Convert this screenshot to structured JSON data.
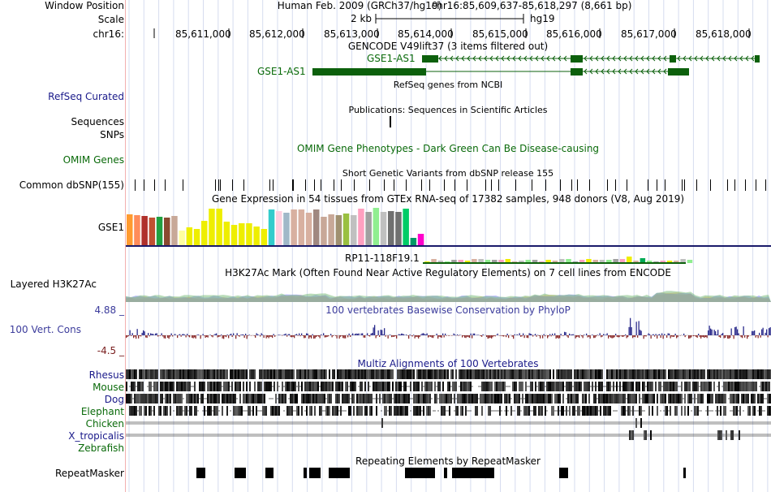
{
  "side_labels": {
    "window_position": "Window Position",
    "scale": "Scale",
    "chrom": "chr16:",
    "refseq_curated": "RefSeq Curated",
    "sequences": "Sequences",
    "snps": "SNPs",
    "omim_genes": "OMIM Genes",
    "common_dbsnp": "Common dbSNP(155)",
    "gse1": "GSE1",
    "layered_h3k27ac": "Layered H3K27Ac",
    "cons_max": "4.88 _",
    "vert_cons": "100 Vert. Cons",
    "cons_min": "-4.5 _",
    "rhesus": "Rhesus",
    "mouse": "Mouse",
    "dog": "Dog",
    "elephant": "Elephant",
    "chicken": "Chicken",
    "x_tropicalis": "X_tropicalis",
    "zebrafish": "Zebrafish",
    "repeatmasker": "RepeatMasker"
  },
  "header": {
    "assembly": "Human Feb. 2009 (GRCh37/hg19)",
    "position": "chr16:85,609,637-85,618,297 (8,661 bp)",
    "scale_label": "2 kb",
    "scale_db": "hg19",
    "ticks": [
      "85,611,000",
      "85,612,000",
      "85,613,000",
      "85,614,000",
      "85,615,000",
      "85,616,000",
      "85,617,000",
      "85,618,000"
    ]
  },
  "tracks": {
    "gencode_title": "GENCODE V49lift37 (3 items filtered out)",
    "gene_gse1_as1_a": "GSE1-AS1",
    "gene_gse1_as1_b": "GSE1-AS1",
    "refseq_title": "RefSeq genes from NCBI",
    "publications_title": "Publications: Sequences in Scientific Articles",
    "omim_title": "OMIM Gene Phenotypes - Dark Green Can Be Disease-causing",
    "dbsnp_title": "Short Genetic Variants from dbSNP release 155",
    "gtex_title": "Gene Expression in 54 tissues from GTEx RNA-seq of 17382 samples, 948 donors (V8, Aug 2019)",
    "gtex_gene2": "RP11-118F19.1",
    "h3k27ac_title": "H3K27Ac Mark (Often Found Near Active Regulatory Elements) on 7 cell lines from ENCODE",
    "phylop_title": "100 vertebrates Basewise Conservation by PhyloP",
    "multiz_title": "Multiz Alignments of 100 Vertebrates",
    "repeat_title": "Repeating Elements by RepeatMasker"
  },
  "colors": {
    "gene_green": "#0a6a0a",
    "gene_body": "#0c600c",
    "track_blue": "#1a1a8a",
    "cons_pos": "#2b2b8c",
    "cons_neg": "#8b2a2a",
    "grid": "#ccd6ee"
  },
  "gtex_bars": [
    {
      "color": "#ff9a2f",
      "level": 0.82
    },
    {
      "color": "#ff8c5a",
      "level": 0.8
    },
    {
      "color": "#b0302b",
      "level": 0.78
    },
    {
      "color": "#c05030",
      "level": 0.74
    },
    {
      "color": "#20a040",
      "level": 0.76
    },
    {
      "color": "#8a4a30",
      "level": 0.74
    },
    {
      "color": "#c8a898",
      "level": 0.78
    },
    {
      "color": "#ffffa0",
      "level": 0.4
    },
    {
      "color": "#eeee00",
      "level": 0.48
    },
    {
      "color": "#eeee00",
      "level": 0.44
    },
    {
      "color": "#eeee00",
      "level": 0.66
    },
    {
      "color": "#eeee00",
      "level": 0.98
    },
    {
      "color": "#eeee00",
      "level": 0.98
    },
    {
      "color": "#eeee00",
      "level": 0.62
    },
    {
      "color": "#eeee00",
      "level": 0.54
    },
    {
      "color": "#eeee00",
      "level": 0.58
    },
    {
      "color": "#eeee00",
      "level": 0.58
    },
    {
      "color": "#eeee00",
      "level": 0.5
    },
    {
      "color": "#eeee00",
      "level": 0.44
    },
    {
      "color": "#33cccc",
      "level": 0.96
    },
    {
      "color": "#ffd0e0",
      "level": 0.92
    },
    {
      "color": "#a0b8c8",
      "level": 0.88
    },
    {
      "color": "#d8b0a0",
      "level": 0.96
    },
    {
      "color": "#d8b0a0",
      "level": 0.96
    },
    {
      "color": "#d8b0a0",
      "level": 0.86
    },
    {
      "color": "#a08880",
      "level": 0.96
    },
    {
      "color": "#c8a898",
      "level": 0.76
    },
    {
      "color": "#c8a898",
      "level": 0.82
    },
    {
      "color": "#a09070",
      "level": 0.8
    },
    {
      "color": "#9ac040",
      "level": 0.84
    },
    {
      "color": "#c0c0c0",
      "level": 0.8
    },
    {
      "color": "#ffa0c0",
      "level": 0.98
    },
    {
      "color": "#a0a0a0",
      "level": 0.9
    },
    {
      "color": "#90ee90",
      "level": 1.0
    },
    {
      "color": "#c0c0c0",
      "level": 0.9
    },
    {
      "color": "#707070",
      "level": 0.92
    },
    {
      "color": "#707070",
      "level": 0.9
    },
    {
      "color": "#00cc66",
      "level": 0.98
    },
    {
      "color": "#009966",
      "level": 0.2
    },
    {
      "color": "#ff00cc",
      "level": 0.3
    }
  ]
}
